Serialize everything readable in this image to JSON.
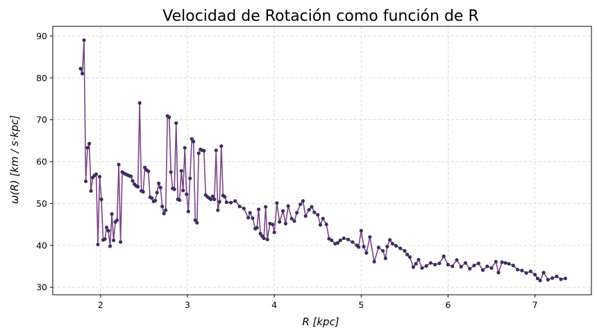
{
  "chart_data": {
    "type": "line",
    "title": "Velocidad de Rotación como función de R",
    "xlabel": "R [kpc]",
    "ylabel": "ω(R) [km / s·kpc]",
    "xlim": [
      1.45,
      7.65
    ],
    "ylim": [
      28.2,
      92.3
    ],
    "xticks": [
      2,
      3,
      4,
      5,
      6,
      7
    ],
    "yticks": [
      30,
      40,
      50,
      60,
      70,
      80,
      90
    ],
    "grid": true,
    "line_color": "#7b4387",
    "marker_color": "#3b2f5c",
    "series": [
      {
        "x": [
          1.77,
          1.79,
          1.81,
          1.83,
          1.85,
          1.87,
          1.89,
          1.91,
          1.93,
          1.95,
          1.97,
          1.99,
          2.01,
          2.03,
          2.05,
          2.07,
          2.09,
          2.11,
          2.13,
          2.15,
          2.17,
          2.19,
          2.21,
          2.23,
          2.25,
          2.27,
          2.29,
          2.31,
          2.33,
          2.35,
          2.37,
          2.39,
          2.41,
          2.43,
          2.45,
          2.47,
          2.49,
          2.51,
          2.53,
          2.55,
          2.57,
          2.59,
          2.61,
          2.63,
          2.65,
          2.67,
          2.69,
          2.71,
          2.73,
          2.75,
          2.77,
          2.79,
          2.81,
          2.83,
          2.85,
          2.87,
          2.89,
          2.91,
          2.93,
          2.95,
          2.97,
          2.99,
          3.01,
          3.03,
          3.05,
          3.07,
          3.09,
          3.11,
          3.13,
          3.15,
          3.17,
          3.19,
          3.21,
          3.23,
          3.25,
          3.27,
          3.29,
          3.31,
          3.33,
          3.35,
          3.37,
          3.39,
          3.41,
          3.43,
          3.45,
          3.5,
          3.55,
          3.6,
          3.65,
          3.7,
          3.72,
          3.75,
          3.78,
          3.8,
          3.82,
          3.84,
          3.86,
          3.88,
          3.9,
          3.92,
          3.95,
          3.98,
          4.0,
          4.03,
          4.06,
          4.1,
          4.13,
          4.16,
          4.2,
          4.23,
          4.26,
          4.3,
          4.33,
          4.36,
          4.4,
          4.43,
          4.46,
          4.5,
          4.53,
          4.56,
          4.6,
          4.63,
          4.66,
          4.7,
          4.73,
          4.76,
          4.8,
          4.85,
          4.9,
          4.95,
          4.97,
          5.0,
          5.03,
          5.06,
          5.1,
          5.15,
          5.2,
          5.25,
          5.28,
          5.3,
          5.33,
          5.36,
          5.4,
          5.45,
          5.5,
          5.53,
          5.56,
          5.6,
          5.63,
          5.66,
          5.7,
          5.75,
          5.8,
          5.85,
          5.9,
          5.95,
          6.0,
          6.05,
          6.1,
          6.15,
          6.2,
          6.25,
          6.3,
          6.35,
          6.4,
          6.45,
          6.5,
          6.55,
          6.58,
          6.62,
          6.66,
          6.7,
          6.75,
          6.8,
          6.85,
          6.9,
          6.95,
          7.0,
          7.03,
          7.06,
          7.1,
          7.15,
          7.2,
          7.25,
          7.3,
          7.35
        ],
        "y": [
          82.2,
          81.0,
          89.0,
          55.3,
          63.3,
          64.3,
          53.0,
          56.2,
          56.7,
          57.0,
          40.2,
          56.4,
          51.0,
          41.3,
          41.5,
          44.3,
          43.5,
          39.8,
          47.5,
          41.2,
          45.6,
          46.0,
          59.3,
          40.8,
          57.5,
          57.2,
          57.0,
          56.8,
          56.6,
          56.5,
          55.4,
          54.6,
          54.2,
          54.0,
          74.0,
          53.0,
          52.8,
          58.6,
          58.0,
          57.7,
          51.5,
          51.3,
          50.5,
          50.7,
          52.6,
          54.8,
          53.8,
          49.3,
          47.6,
          48.4,
          70.9,
          70.6,
          57.5,
          53.6,
          53.4,
          69.2,
          51.0,
          50.8,
          57.8,
          53.1,
          63.3,
          52.2,
          48.1,
          56.0,
          65.4,
          64.8,
          46.0,
          45.4,
          62.0,
          62.9,
          62.7,
          62.6,
          52.0,
          51.6,
          51.3,
          51.0,
          51.7,
          51.0,
          62.7,
          48.4,
          50.4,
          63.7,
          51.9,
          51.6,
          50.3,
          50.2,
          50.6,
          49.3,
          48.8,
          46.6,
          47.8,
          46.5,
          44.0,
          44.2,
          48.6,
          42.8,
          42.2,
          41.7,
          49.2,
          41.4,
          45.2,
          45.0,
          43.1,
          50.1,
          45.6,
          48.2,
          45.2,
          49.4,
          46.4,
          45.8,
          47.8,
          49.8,
          50.6,
          47.0,
          48.5,
          49.2,
          47.9,
          47.3,
          44.9,
          46.4,
          45.0,
          41.6,
          41.2,
          40.4,
          40.6,
          41.2,
          41.7,
          41.4,
          40.8,
          40.0,
          39.6,
          43.5,
          39.7,
          38.2,
          42.0,
          36.1,
          39.5,
          38.7,
          36.9,
          39.7,
          41.3,
          40.4,
          39.9,
          39.3,
          38.7,
          37.8,
          37.2,
          34.8,
          35.6,
          36.6,
          34.6,
          35.1,
          35.8,
          35.4,
          35.7,
          37.4,
          35.4,
          35.0,
          36.5,
          34.9,
          35.8,
          34.4,
          35.2,
          35.7,
          34.1,
          35.0,
          34.6,
          36.1,
          33.5,
          36.0,
          35.8,
          35.6,
          35.2,
          34.2,
          34.0,
          33.4,
          33.8,
          33.0,
          32.1,
          31.6,
          33.5,
          31.8,
          32.2,
          32.6,
          31.9,
          32.1
        ]
      }
    ]
  }
}
